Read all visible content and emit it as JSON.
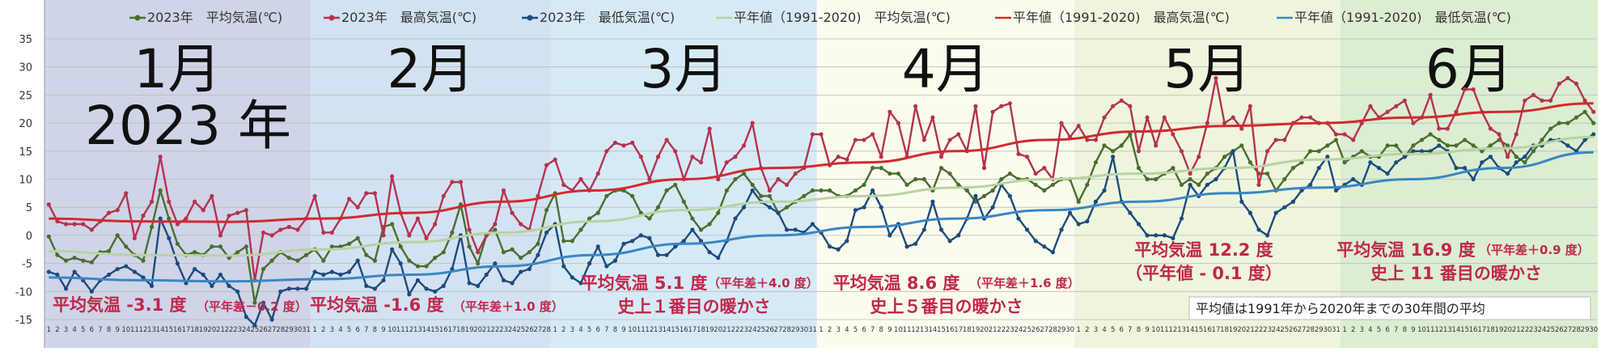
{
  "chart_data": {
    "type": "line",
    "title": "",
    "xlabel": "",
    "ylabel": "",
    "ylim": [
      -15,
      35
    ],
    "yticks": [
      -15,
      -10,
      -5,
      0,
      5,
      10,
      15,
      20,
      25,
      30,
      35
    ],
    "grid": true,
    "legend_position": "top",
    "year_label": "2023 年",
    "months": [
      {
        "label": "1月",
        "days": 31,
        "bg": "#cfd4e8"
      },
      {
        "label": "2月",
        "days": 28,
        "bg": "#d3e2f2"
      },
      {
        "label": "3月",
        "days": 31,
        "bg": "#d6eaf6"
      },
      {
        "label": "4月",
        "days": 30,
        "bg": "#fbfcee"
      },
      {
        "label": "5月",
        "days": 31,
        "bg": "#eef5dc"
      },
      {
        "label": "6月",
        "days": 30,
        "bg": "#dcedd2"
      }
    ],
    "series": [
      {
        "name": "2023年　平均気温(℃)",
        "color": "#4b6e2e",
        "marker": true,
        "values": [
          -0.2,
          -3.5,
          -4.5,
          -4,
          -4.5,
          -4.8,
          -3,
          -2.8,
          0,
          -2,
          -3.5,
          -4.5,
          1.5,
          8,
          3,
          -1.5,
          -3.5,
          -3,
          -3.5,
          -2,
          -2,
          -4,
          -3,
          -2,
          -12,
          -6,
          -4.5,
          -3,
          -4,
          -4.5,
          -3.5,
          -2.5,
          -4.5,
          -2,
          -2,
          -1.5,
          -0.5,
          -3.5,
          -4.5,
          1.5,
          2,
          -2,
          -4.5,
          -5.5,
          -5.5,
          -4,
          -3,
          0.5,
          5.5,
          -2,
          -5,
          0,
          1,
          -3,
          -2.5,
          -4,
          -3,
          -1.5,
          4.5,
          7.5,
          -1,
          -1,
          1,
          3,
          4,
          7,
          8,
          8,
          7,
          4,
          3,
          5,
          8,
          9,
          6,
          3,
          1,
          2,
          4,
          8,
          10,
          11,
          9,
          7,
          7,
          4,
          5,
          6,
          7,
          8,
          8,
          8,
          7,
          7,
          8,
          9,
          12,
          12,
          11,
          11,
          9,
          10,
          10,
          8,
          12,
          11,
          9,
          8,
          6,
          7,
          8,
          10,
          11,
          10,
          10,
          9,
          8,
          9,
          10,
          10,
          6,
          9,
          13,
          16,
          15,
          16,
          18,
          12,
          10,
          10,
          11,
          12,
          9,
          10,
          9,
          11,
          12,
          14,
          15,
          16,
          13,
          11,
          11,
          8,
          10,
          12,
          13,
          15,
          15,
          16,
          17,
          13,
          14,
          15,
          14,
          14,
          16,
          16,
          14,
          16,
          17,
          18,
          17,
          16,
          16,
          17,
          16,
          15,
          16,
          17,
          16,
          14,
          13,
          15,
          17,
          19,
          20,
          20,
          21,
          22,
          20
        ]
      },
      {
        "name": "2023年　最高気温(℃)",
        "color": "#b5324f",
        "marker": true,
        "values": [
          5.5,
          2.5,
          2,
          2,
          2,
          1,
          2.5,
          4,
          4.5,
          7.5,
          -0.5,
          3.5,
          6,
          14,
          6,
          2,
          3,
          6,
          4.5,
          7,
          0,
          3.5,
          4,
          4.5,
          -8,
          0.5,
          0,
          1,
          1.5,
          1,
          3,
          7,
          0.5,
          0.5,
          3,
          6.5,
          5,
          7.5,
          7.5,
          0,
          10.5,
          4,
          0,
          3,
          -0.5,
          2,
          7,
          9.5,
          9.5,
          1,
          -3,
          0,
          2,
          8,
          4,
          2,
          1,
          7,
          12.5,
          13.5,
          9,
          8,
          10,
          8,
          11,
          15,
          16.5,
          16,
          16.5,
          14,
          10,
          14,
          17,
          15,
          10,
          14,
          13,
          19,
          10,
          13,
          14,
          16,
          20,
          12,
          8,
          10,
          9,
          11,
          12,
          18,
          18,
          12.5,
          14,
          13.5,
          17,
          17,
          18,
          14,
          22,
          20,
          14,
          23,
          17,
          21,
          14,
          17,
          18,
          15,
          23,
          12,
          22,
          23,
          23.5,
          14.5,
          14,
          11,
          12,
          10,
          20,
          17.5,
          19.5,
          17,
          17,
          21,
          23,
          24,
          23,
          15,
          21,
          16,
          21,
          18,
          15,
          11,
          14,
          20,
          28,
          20,
          21,
          19,
          23,
          9,
          15,
          17,
          17,
          20,
          21,
          21,
          20,
          20,
          18,
          18,
          17,
          20,
          23,
          21,
          22,
          23,
          24,
          20,
          21,
          25,
          19,
          19,
          22,
          26,
          26,
          22,
          19,
          18,
          14,
          18,
          24,
          25,
          24,
          24,
          27,
          28,
          27,
          24,
          22
        ]
      },
      {
        "name": "2023年　最低気温(℃)",
        "color": "#1c4b7e",
        "marker": true,
        "values": [
          -6.5,
          -7,
          -9.5,
          -6.5,
          -8,
          -10,
          -8,
          -7,
          -6,
          -5.5,
          -6.5,
          -7.5,
          -9,
          3,
          -0.5,
          -5,
          -8.5,
          -6,
          -7,
          -9,
          -7,
          -9,
          -10,
          -14.5,
          -16,
          -12,
          -15,
          -10,
          -9.5,
          -9.5,
          -9.5,
          -6.5,
          -7,
          -6.5,
          -7,
          -6.5,
          -4.5,
          -9,
          -9.5,
          -8,
          -2.5,
          -5,
          -10.5,
          -8,
          -9.5,
          -10,
          -9,
          -6,
          0,
          -8.5,
          -9,
          -7,
          -5,
          -8,
          -8.5,
          -6.5,
          -6,
          -3.5,
          0.5,
          2,
          -5.5,
          -7.5,
          -8.5,
          -5,
          -2,
          -5.5,
          -4.5,
          -1.5,
          -1,
          0,
          -0.5,
          -3.5,
          -3.5,
          -2,
          -1,
          1,
          -1,
          -3,
          -4,
          -1,
          3,
          5,
          8,
          6,
          5,
          4,
          1,
          1,
          0.5,
          2,
          0.5,
          -2,
          -2.5,
          -1,
          4.5,
          5,
          8,
          5,
          0,
          2,
          -2,
          -1.5,
          1,
          6,
          1,
          -1,
          0,
          3,
          7,
          3,
          5,
          9,
          7,
          3,
          1,
          -1,
          -2,
          -3,
          1,
          4,
          2,
          2.5,
          6,
          8,
          14,
          6,
          4,
          2,
          0,
          0,
          0,
          -0.5,
          3,
          9,
          7,
          9,
          10,
          12,
          15,
          6,
          4,
          1,
          0,
          4,
          5,
          6,
          8,
          9,
          12,
          14,
          8,
          9,
          10,
          9,
          13,
          12,
          11,
          13,
          14,
          15,
          15,
          15,
          16,
          15,
          12,
          12,
          10,
          13,
          14,
          12,
          11,
          13,
          14,
          16,
          16,
          17,
          17,
          16,
          15,
          17,
          18
        ]
      },
      {
        "name": "平年値（1991-2020)　平均気温(℃)",
        "color": "#b8d3a0",
        "marker": false,
        "values": [
          -2.8,
          -3.5,
          -3.6,
          -2.5,
          -1.2,
          0.5,
          2.5,
          4.5,
          6,
          7,
          8.5,
          10,
          11,
          12,
          13.5,
          14.5,
          15.5,
          17.5
        ]
      },
      {
        "name": "平年値（1991-2020)　最高気温(℃)",
        "color": "#d12a2f",
        "marker": false,
        "values": [
          3,
          2.5,
          2.4,
          3,
          4,
          6,
          8,
          10,
          12,
          13,
          15,
          17,
          18.5,
          19.5,
          20,
          21,
          22,
          23.5
        ]
      },
      {
        "name": "平年値（1991-2020)　最低気温(℃)",
        "color": "#3b86c2",
        "marker": false,
        "values": [
          -7.5,
          -8,
          -8.2,
          -7.8,
          -7,
          -5.5,
          -3.5,
          -1.5,
          0,
          1.5,
          3,
          4.5,
          6,
          7.5,
          8.5,
          10,
          12,
          14.8
        ]
      }
    ],
    "annotations": [
      {
        "lines": [
          "平均気温 -3.1 度"
        ],
        "small": "（平年差－0.2 度）"
      },
      {
        "lines": [
          "平均気温 -1.6 度"
        ],
        "small": "（平年差＋1.0 度）"
      },
      {
        "lines": [
          "平均気温 5.1 度",
          "史上１番目の暖かさ"
        ],
        "small": "（平年差＋4.0 度）"
      },
      {
        "lines": [
          "平均気温 8.6 度",
          "史上５番目の暖かさ"
        ],
        "small": "（平年差＋1.6 度）"
      },
      {
        "lines": [
          "平均気温 12.2 度",
          "（平年値 - 0.1 度）"
        ],
        "small": ""
      },
      {
        "lines": [
          "平均気温 16.9 度",
          "史上 11 番目の暖かさ"
        ],
        "small": "（平年差＋0.9 度）"
      }
    ],
    "note": "平均値は1991年から2020年までの30年間の平均"
  }
}
